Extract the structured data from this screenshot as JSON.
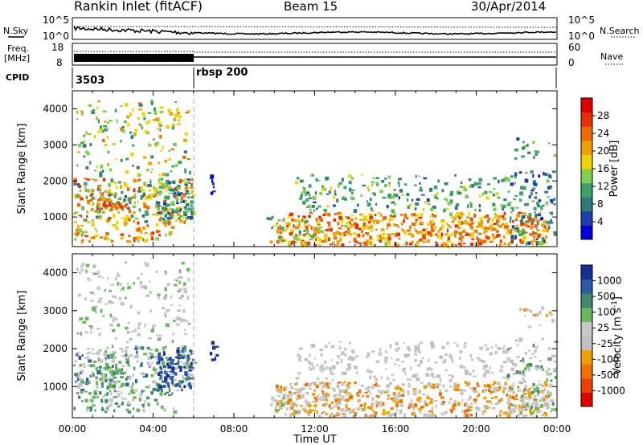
{
  "header": {
    "station": "Rankin Inlet (fitACF)",
    "beam": "Beam 15",
    "date": "30/Apr/2014"
  },
  "colors": {
    "power_scale": [
      "#0000e0",
      "#1c3fae",
      "#2f7a7a",
      "#3aa36a",
      "#7fd04a",
      "#f0d400",
      "#f0a000",
      "#f06a00",
      "#e83000",
      "#e00000"
    ],
    "velocity_scale": [
      "#1a2e9a",
      "#2a5aa8",
      "#3f8a6a",
      "#66b85a",
      "#c8c8c8",
      "#c0c0c0",
      "#f0a000",
      "#f07000",
      "#ee4000",
      "#e00000"
    ]
  },
  "chart_data": [
    {
      "type": "line",
      "name": "noise-panel",
      "left_labels": [
        "N.Sky"
      ],
      "right_labels": [
        "N.Search"
      ],
      "left_ticks": [
        "10^5",
        "10^0"
      ],
      "right_ticks": [
        "10^5",
        "10^0"
      ],
      "series": [
        {
          "name": "N.Sky",
          "style": "solid"
        },
        {
          "name": "N.Search",
          "style": "dotted"
        }
      ]
    },
    {
      "type": "line",
      "name": "freq-nave-panel",
      "left_labels": [
        "Freq.",
        "[MHz]"
      ],
      "right_labels": [
        "Nave"
      ],
      "left_ticks": [
        "18",
        "8"
      ],
      "right_ticks": [
        "60",
        "0"
      ],
      "series": [
        {
          "name": "Freq.",
          "style": "solid"
        },
        {
          "name": "Nave",
          "style": "dotted"
        }
      ]
    },
    {
      "type": "table",
      "name": "cpid-strip",
      "label": "CPID",
      "segments": [
        {
          "start": "00:00",
          "label": "3503"
        },
        {
          "start": "06:00",
          "label": "rbsp 200"
        }
      ]
    },
    {
      "type": "heatmap",
      "name": "power",
      "ylabel": "Slant Range [km]",
      "xlabel": "",
      "yticks": [
        1000,
        2000,
        3000,
        4000
      ],
      "ylim": [
        180,
        4500
      ],
      "colorbar_label": "Power [dB]",
      "colorbar_ticks": [
        "28",
        "24",
        "20",
        "16",
        "12",
        "8",
        "4"
      ]
    },
    {
      "type": "heatmap",
      "name": "velocity",
      "ylabel": "Slant Range [km]",
      "xlabel": "Time UT",
      "xticks": [
        "00:00",
        "04:00",
        "08:00",
        "12:00",
        "16:00",
        "20:00",
        "00:00"
      ],
      "yticks": [
        1000,
        2000,
        3000,
        4000
      ],
      "ylim": [
        180,
        4500
      ],
      "colorbar_label": "Velocity [m s^-1]",
      "colorbar_ticks": [
        "1000",
        "500",
        "100",
        "25",
        "-25",
        "-100",
        "-500",
        "-1000"
      ]
    }
  ]
}
